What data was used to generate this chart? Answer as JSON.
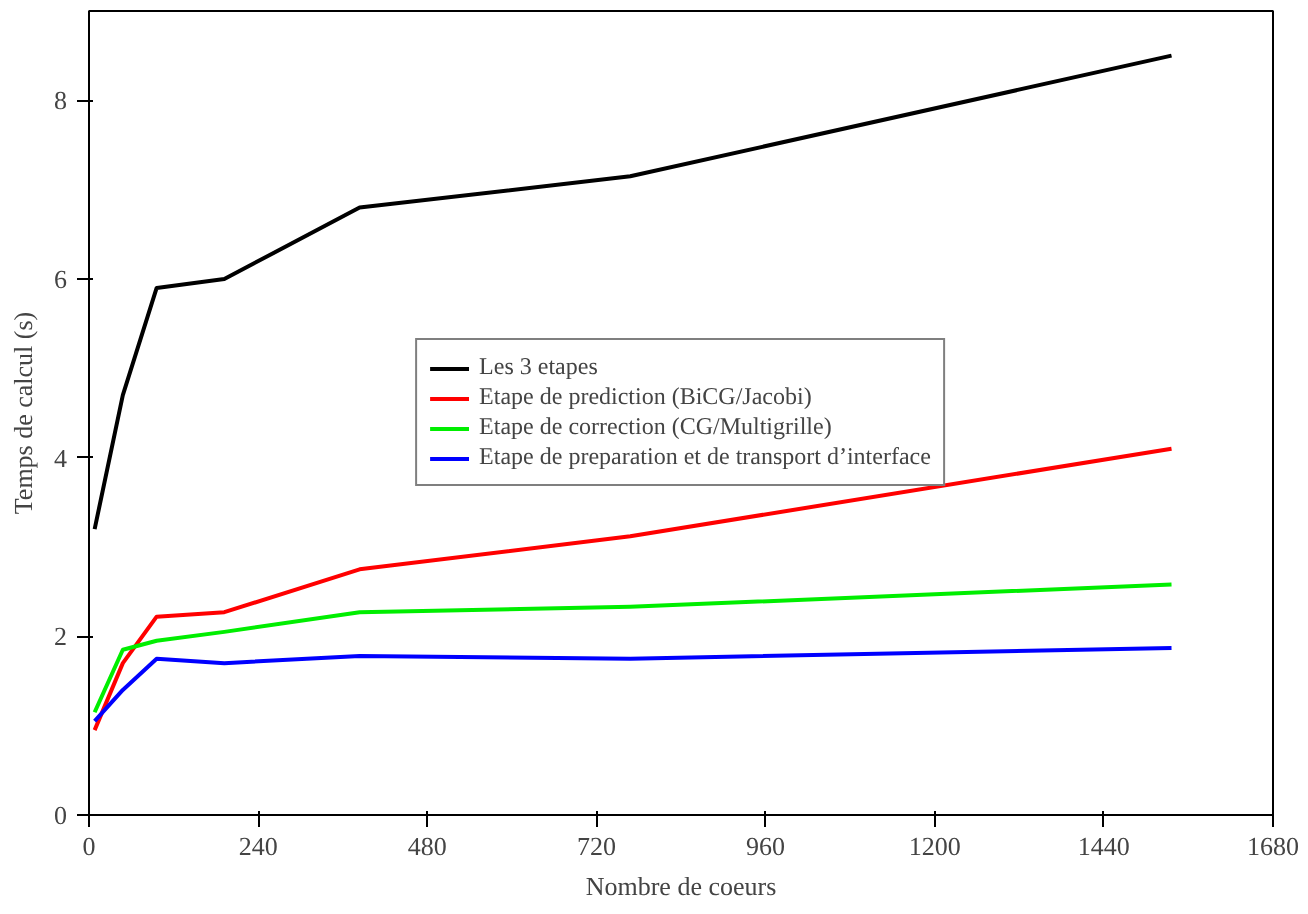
{
  "chart_data": {
    "type": "line",
    "xlabel": "Nombre de coeurs",
    "ylabel": "Temps de calcul (s)",
    "x": [
      8,
      48,
      96,
      192,
      384,
      768,
      1536
    ],
    "series": [
      {
        "name": "Les 3 etapes",
        "color": "#000000",
        "values": [
          3.2,
          4.7,
          5.9,
          6.0,
          6.8,
          7.15,
          8.5
        ]
      },
      {
        "name": "Etape de prediction (BiCG/Jacobi)",
        "color": "#ff0000",
        "values": [
          0.95,
          1.7,
          2.22,
          2.27,
          2.75,
          3.12,
          4.1
        ]
      },
      {
        "name": "Etape de correction (CG/Multigrille)",
        "color": "#00ee00",
        "values": [
          1.15,
          1.85,
          1.95,
          2.05,
          2.27,
          2.33,
          2.58
        ]
      },
      {
        "name": "Etape de preparation et de transport d’interface",
        "color": "#0000ff",
        "values": [
          1.05,
          1.4,
          1.75,
          1.7,
          1.78,
          1.75,
          1.87
        ]
      }
    ],
    "xlim": [
      0,
      1680
    ],
    "xticks": [
      0,
      240,
      480,
      720,
      960,
      1200,
      1440,
      1680
    ],
    "ylim": [
      0,
      9
    ],
    "yticks": [
      0,
      2,
      4,
      6,
      8
    ],
    "grid": false,
    "legend": "center",
    "marker": "none",
    "line_style": "solid"
  }
}
